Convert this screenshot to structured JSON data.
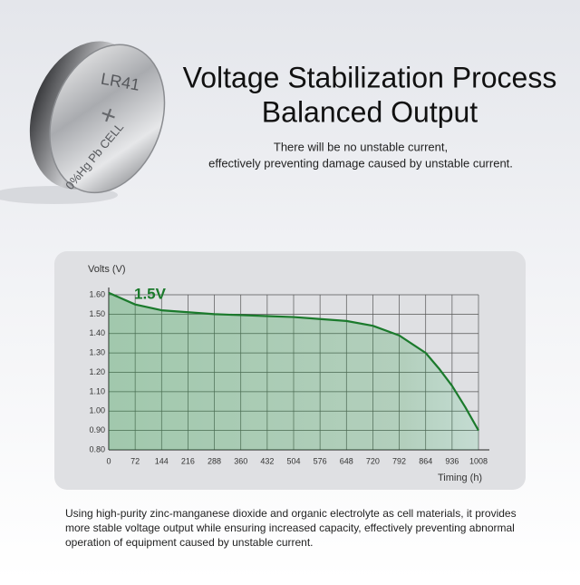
{
  "header": {
    "title": [
      "Voltage Stabilization Process",
      "Balanced Output"
    ],
    "subtitle": [
      "There will be no unstable current,",
      "effectively preventing damage caused by unstable current."
    ]
  },
  "battery": {
    "model": "LR41",
    "symbol": "+",
    "marking": "0%Hg Pb CELL"
  },
  "chart_data": {
    "type": "line",
    "y_label": "Volts (V)",
    "x_label": "Timing (h)",
    "annotation": "1.5V",
    "x": [
      0,
      72,
      144,
      216,
      288,
      360,
      432,
      504,
      576,
      648,
      720,
      792,
      864,
      900,
      936,
      972,
      1008
    ],
    "series": [
      {
        "color": "#1b7a2c",
        "values": [
          1.61,
          1.55,
          1.52,
          1.51,
          1.5,
          1.495,
          1.49,
          1.485,
          1.475,
          1.465,
          1.44,
          1.39,
          1.3,
          1.22,
          1.13,
          1.02,
          0.9
        ]
      }
    ],
    "area": true,
    "grid": true,
    "xlim": [
      0,
      1008
    ],
    "xticks": [
      0,
      72,
      144,
      216,
      288,
      360,
      432,
      504,
      576,
      648,
      720,
      792,
      864,
      936,
      1008
    ],
    "ylim": [
      0.8,
      1.6
    ],
    "yticks": [
      {
        "value": 0.8,
        "label": "0.80"
      },
      {
        "value": 0.9,
        "label": "0.90"
      },
      {
        "value": 1.0,
        "label": "1.00"
      },
      {
        "value": 1.1,
        "label": "1.10"
      },
      {
        "value": 1.2,
        "label": "1.20"
      },
      {
        "value": 1.3,
        "label": "1.30"
      },
      {
        "value": 1.4,
        "label": "1.40"
      },
      {
        "value": 1.5,
        "label": "1.50"
      },
      {
        "value": 1.6,
        "label": "1.60"
      }
    ]
  },
  "footer": {
    "text": [
      "Using high-purity zinc-manganese dioxide and organic electrolyte as cell materials, it provides",
      "more stable voltage output while ensuring increased capacity, effectively preventing abnormal",
      "operation of equipment caused by unstable current."
    ]
  }
}
